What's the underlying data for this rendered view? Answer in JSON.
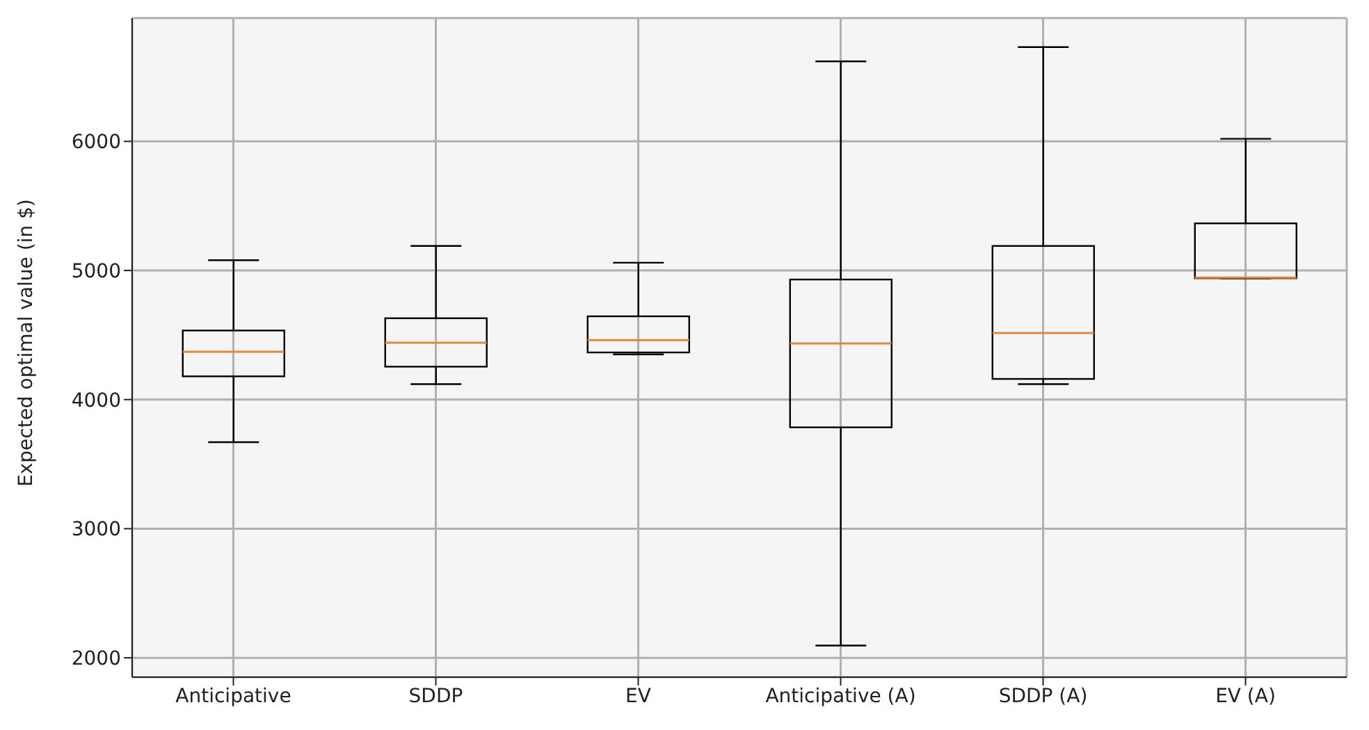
{
  "chart_data": {
    "type": "box",
    "ylabel": "Expected optimal value (in $)",
    "categories": [
      "Anticipative",
      "SDDP",
      "EV",
      "Anticipative (A)",
      "SDDP (A)",
      "EV (A)"
    ],
    "boxes": [
      {
        "low": 3670,
        "q1": 4180,
        "median": 4370,
        "q3": 4535,
        "high": 5080
      },
      {
        "low": 4120,
        "q1": 4255,
        "median": 4440,
        "q3": 4630,
        "high": 5190
      },
      {
        "low": 4350,
        "q1": 4365,
        "median": 4460,
        "q3": 4645,
        "high": 5060
      },
      {
        "low": 2095,
        "q1": 3785,
        "median": 4435,
        "q3": 4930,
        "high": 6620
      },
      {
        "low": 4120,
        "q1": 4160,
        "median": 4515,
        "q3": 5190,
        "high": 6730
      },
      {
        "low": 4940,
        "q1": 4940,
        "median": 4945,
        "q3": 5365,
        "high": 6020
      }
    ],
    "ylim": [
      1850,
      6955
    ],
    "yticks": [
      2000,
      3000,
      4000,
      5000,
      6000
    ],
    "grid": true
  }
}
